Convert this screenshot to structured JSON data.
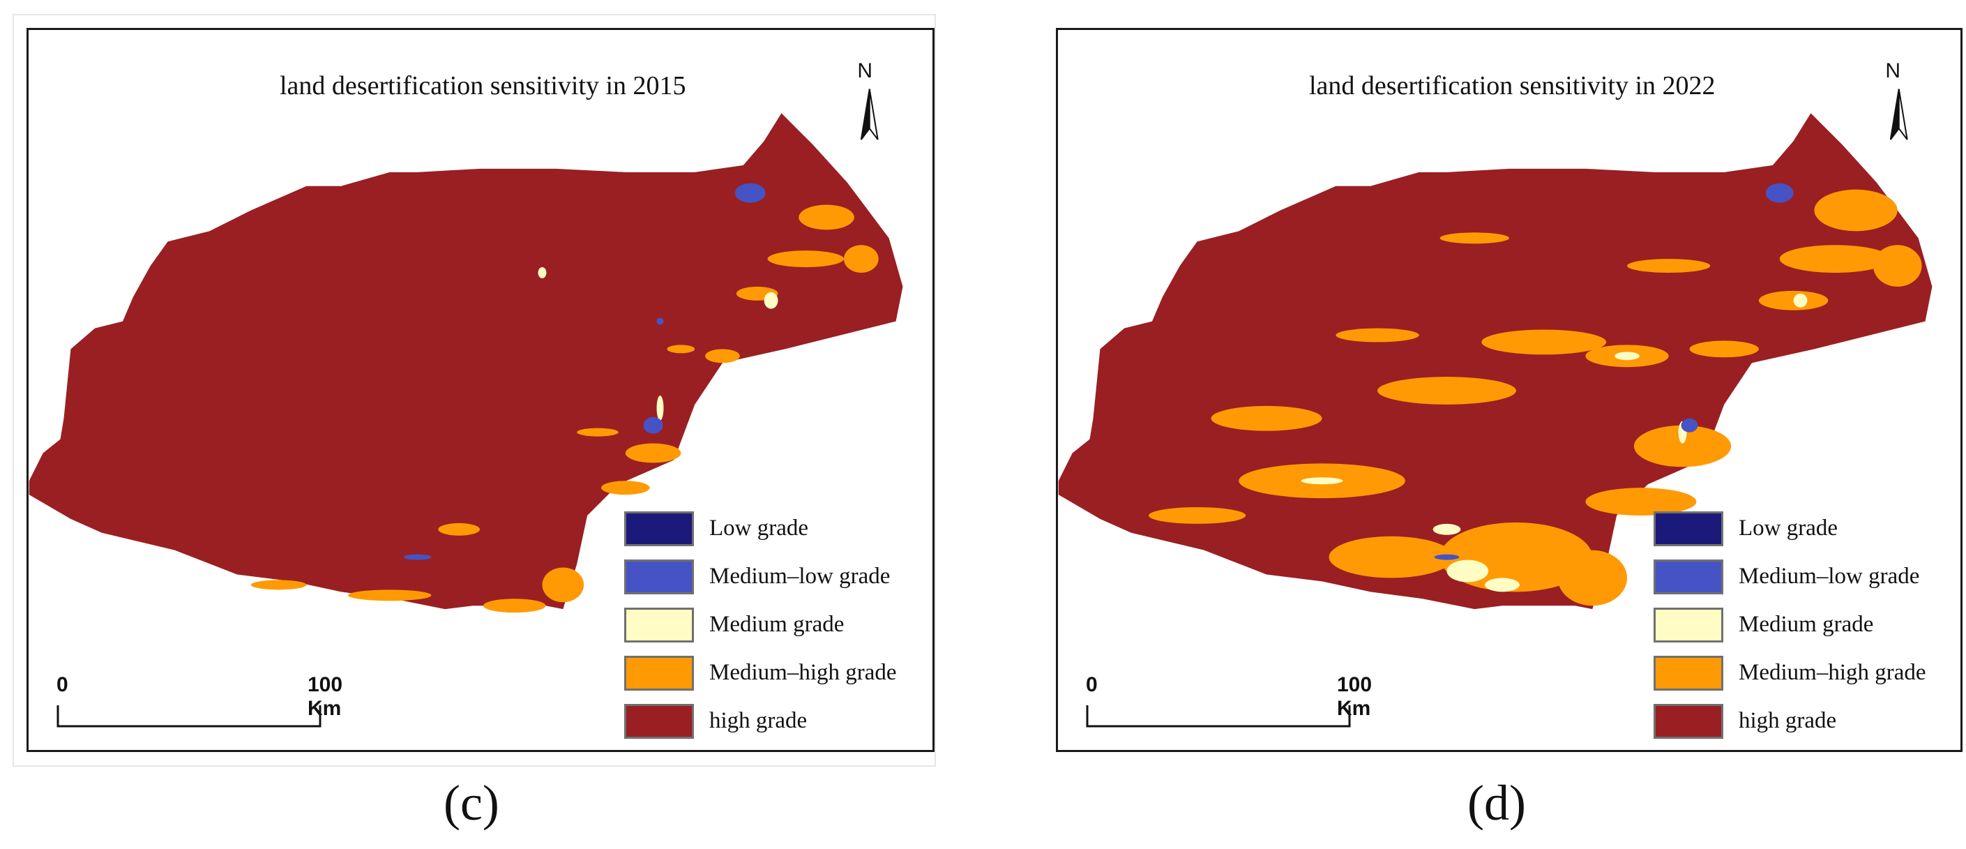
{
  "figure": {
    "panels": [
      {
        "id": "c",
        "caption": "(c)",
        "title": "land desertification sensitivity in 2015",
        "north_label": "N",
        "scale_start": "0",
        "scale_end": "100 Km"
      },
      {
        "id": "d",
        "caption": "(d)",
        "title": "land desertification sensitivity in 2022",
        "north_label": "N",
        "scale_start": "0",
        "scale_end": "100 Km"
      }
    ],
    "legend": [
      {
        "label": "Low grade",
        "color": "#1b1a7a"
      },
      {
        "label": "Medium–low grade",
        "color": "#4653c4"
      },
      {
        "label": "Medium grade",
        "color": "#fffcc4"
      },
      {
        "label": "Medium–high grade",
        "color": "#ff9a05"
      },
      {
        "label": "high grade",
        "color": "#9a1f22"
      }
    ],
    "colors": {
      "high": "#9a1f22",
      "medium_high": "#ff9a05",
      "medium": "#fffcc4",
      "medium_low": "#4653c4",
      "low": "#1b1a7a"
    }
  }
}
